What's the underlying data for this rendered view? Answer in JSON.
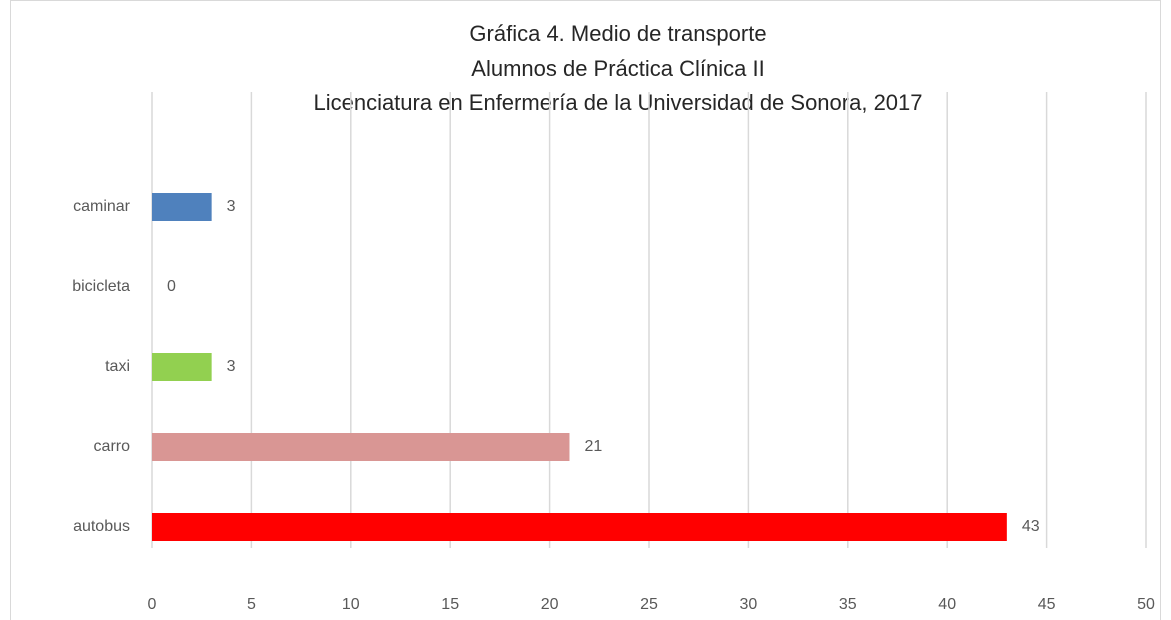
{
  "chart_data": {
    "type": "bar",
    "orientation": "horizontal",
    "title": [
      "Gráfica 4. Medio de transporte",
      "Alumnos de Práctica Clínica II",
      "Licenciatura en Enfermería de la Universidad de Sonora, 2017"
    ],
    "categories": [
      "caminar",
      "bicicleta",
      "taxi",
      "carro",
      "autobus"
    ],
    "values": [
      3,
      0,
      3,
      21,
      43
    ],
    "colors": [
      "#4f81bd",
      null,
      "#92d050",
      "#d99694",
      "#ff0000"
    ],
    "xlim": [
      0,
      50
    ],
    "xticks": [
      0,
      5,
      10,
      15,
      20,
      25,
      30,
      35,
      40,
      45,
      50
    ],
    "grid": true,
    "data_labels": true
  }
}
